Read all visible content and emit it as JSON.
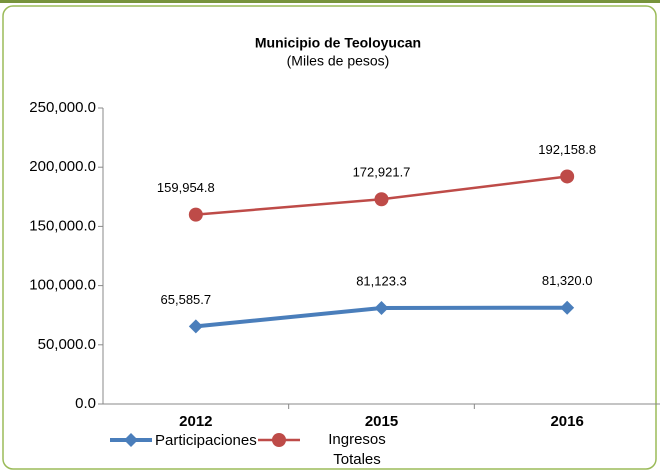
{
  "chart_data": {
    "type": "line",
    "title": "Municipio de Teoloyucan",
    "subtitle": "(Miles de pesos)",
    "categories": [
      "2012",
      "2015",
      "2016"
    ],
    "series": [
      {
        "name": "Participaciones",
        "color": "#4a7ebb",
        "marker": "diamond",
        "values": [
          65585.7,
          81123.3,
          81320.0
        ],
        "value_labels": [
          "65,585.7",
          "81,123.3",
          "81,320.0"
        ]
      },
      {
        "name": "Ingresos Totales",
        "color": "#be4b48",
        "marker": "circle",
        "values": [
          159954.8,
          172921.7,
          192158.8
        ],
        "value_labels": [
          "159,954.8",
          "172,921.7",
          "192,158.8"
        ]
      }
    ],
    "ylim": [
      0,
      250000
    ],
    "yticks": [
      {
        "value": 0,
        "label": "0.0"
      },
      {
        "value": 50000,
        "label": "50,000.0"
      },
      {
        "value": 100000,
        "label": "100,000.0"
      },
      {
        "value": 150000,
        "label": "150,000.0"
      },
      {
        "value": 200000,
        "label": "200,000.0"
      },
      {
        "value": 250000,
        "label": "250,000.0"
      }
    ],
    "grid": false
  }
}
